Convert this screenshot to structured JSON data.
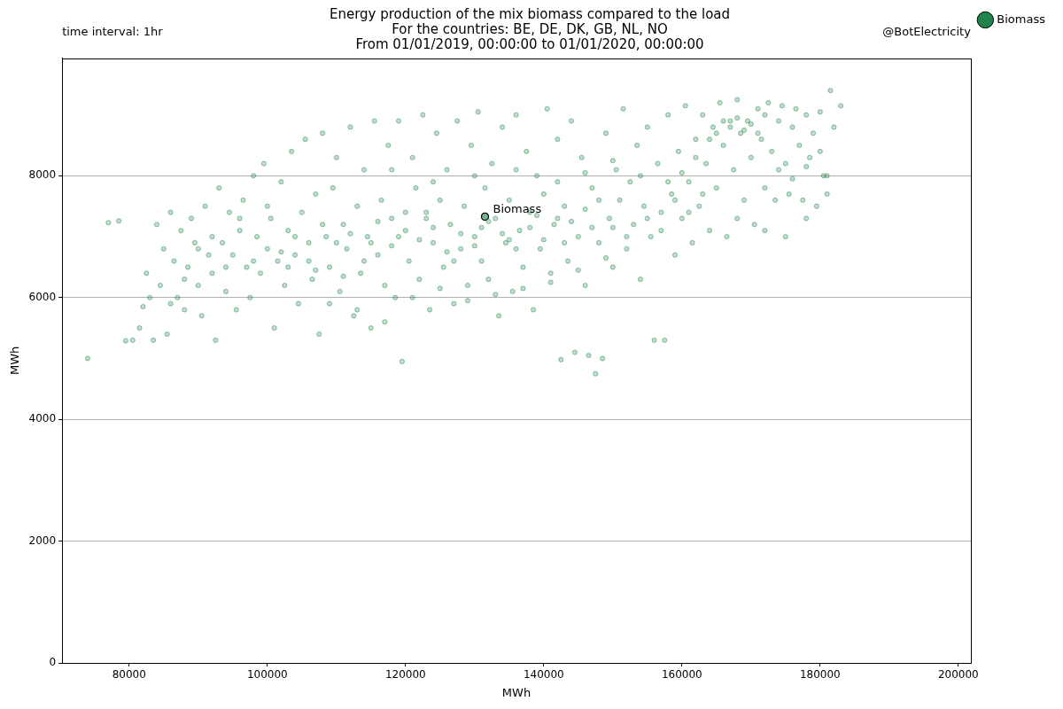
{
  "chart_data": {
    "type": "scatter",
    "title": [
      "Energy production of the mix biomass compared to the load",
      "For the countries: BE, DE, DK, GB, NL, NO",
      "From 01/01/2019, 00:00:00 to 01/01/2020, 00:00:00"
    ],
    "corner_texts": {
      "left": "time interval: 1hr",
      "right": "@BotElectricity"
    },
    "x_label": "MWh",
    "y_label": "MWh",
    "xlim": [
      70300,
      201800
    ],
    "xticks": [
      80000,
      100000,
      120000,
      140000,
      160000,
      180000,
      200000
    ],
    "ylim": [
      0,
      9930
    ],
    "yticks": [
      0,
      2000,
      4000,
      6000,
      8000
    ],
    "grid": "y",
    "legend": "right",
    "annotations": [
      {
        "text": "Biomass",
        "x": 131500,
        "y": 7330
      }
    ],
    "series": [
      {
        "name": "Biomass",
        "color": "#1e8449",
        "marker": "circle",
        "values": [
          [
            74000,
            5000
          ],
          [
            77000,
            7230
          ],
          [
            78500,
            7260
          ],
          [
            79500,
            5290
          ],
          [
            80500,
            5300
          ],
          [
            81500,
            5500
          ],
          [
            82000,
            5850
          ],
          [
            82500,
            6400
          ],
          [
            83000,
            6000
          ],
          [
            83500,
            5300
          ],
          [
            84000,
            7200
          ],
          [
            84500,
            6200
          ],
          [
            85000,
            6800
          ],
          [
            85500,
            5400
          ],
          [
            86000,
            7400
          ],
          [
            86500,
            6600
          ],
          [
            87000,
            6000
          ],
          [
            87500,
            7100
          ],
          [
            88000,
            5800
          ],
          [
            88500,
            6500
          ],
          [
            89000,
            7300
          ],
          [
            89500,
            6900
          ],
          [
            90000,
            6200
          ],
          [
            90500,
            5700
          ],
          [
            91000,
            7500
          ],
          [
            91500,
            6700
          ],
          [
            92000,
            6400
          ],
          [
            92500,
            5300
          ],
          [
            93000,
            7800
          ],
          [
            93500,
            6900
          ],
          [
            94000,
            6100
          ],
          [
            94500,
            7400
          ],
          [
            95000,
            6700
          ],
          [
            95500,
            5800
          ],
          [
            96000,
            7100
          ],
          [
            96500,
            7600
          ],
          [
            97000,
            6500
          ],
          [
            97500,
            6000
          ],
          [
            98000,
            8000
          ],
          [
            98500,
            7000
          ],
          [
            99000,
            6400
          ],
          [
            99500,
            8200
          ],
          [
            100000,
            6800
          ],
          [
            100500,
            7300
          ],
          [
            101000,
            5500
          ],
          [
            101500,
            6600
          ],
          [
            102000,
            7900
          ],
          [
            102500,
            6200
          ],
          [
            103000,
            7100
          ],
          [
            103500,
            8400
          ],
          [
            104000,
            6700
          ],
          [
            104500,
            5900
          ],
          [
            105000,
            7400
          ],
          [
            105500,
            8600
          ],
          [
            106000,
            6900
          ],
          [
            106500,
            6300
          ],
          [
            107000,
            7700
          ],
          [
            107500,
            5400
          ],
          [
            108000,
            8700
          ],
          [
            108500,
            7000
          ],
          [
            109000,
            6500
          ],
          [
            109500,
            7800
          ],
          [
            110000,
            8300
          ],
          [
            110500,
            6100
          ],
          [
            111000,
            7200
          ],
          [
            111500,
            6800
          ],
          [
            112000,
            8800
          ],
          [
            112500,
            5700
          ],
          [
            113000,
            7500
          ],
          [
            113500,
            6400
          ],
          [
            114000,
            8100
          ],
          [
            114500,
            7000
          ],
          [
            115000,
            5500
          ],
          [
            115500,
            8900
          ],
          [
            116000,
            6700
          ],
          [
            116500,
            7600
          ],
          [
            117000,
            6200
          ],
          [
            117500,
            8500
          ],
          [
            118000,
            7300
          ],
          [
            118500,
            6000
          ],
          [
            119000,
            8900
          ],
          [
            119500,
            4950
          ],
          [
            120000,
            7100
          ],
          [
            120500,
            6600
          ],
          [
            121000,
            8300
          ],
          [
            121500,
            7800
          ],
          [
            122000,
            6300
          ],
          [
            122500,
            9000
          ],
          [
            123000,
            7400
          ],
          [
            123500,
            5800
          ],
          [
            124000,
            6900
          ],
          [
            124500,
            8700
          ],
          [
            125000,
            7600
          ],
          [
            125500,
            6500
          ],
          [
            126000,
            8100
          ],
          [
            126500,
            7200
          ],
          [
            127000,
            5900
          ],
          [
            127500,
            8900
          ],
          [
            128000,
            6800
          ],
          [
            128500,
            7500
          ],
          [
            129000,
            6200
          ],
          [
            129500,
            8500
          ],
          [
            130000,
            7000
          ],
          [
            130500,
            9050
          ],
          [
            131000,
            6600
          ],
          [
            131500,
            7800
          ],
          [
            132000,
            6300
          ],
          [
            132500,
            8200
          ],
          [
            133000,
            7300
          ],
          [
            133500,
            5700
          ],
          [
            134000,
            8800
          ],
          [
            134500,
            6900
          ],
          [
            135000,
            7600
          ],
          [
            135500,
            6100
          ],
          [
            136000,
            9000
          ],
          [
            136500,
            7100
          ],
          [
            137000,
            6500
          ],
          [
            137500,
            8400
          ],
          [
            138000,
            7400
          ],
          [
            138500,
            5800
          ],
          [
            139000,
            8000
          ],
          [
            139500,
            6800
          ],
          [
            140000,
            7700
          ],
          [
            140500,
            9100
          ],
          [
            141000,
            6400
          ],
          [
            141500,
            7200
          ],
          [
            142000,
            8600
          ],
          [
            142500,
            4980
          ],
          [
            143000,
            7500
          ],
          [
            143500,
            6600
          ],
          [
            144000,
            8900
          ],
          [
            144500,
            5100
          ],
          [
            145000,
            7000
          ],
          [
            145500,
            8300
          ],
          [
            146000,
            6200
          ],
          [
            146500,
            5050
          ],
          [
            147000,
            7800
          ],
          [
            147500,
            4750
          ],
          [
            148000,
            6900
          ],
          [
            148500,
            5000
          ],
          [
            149000,
            8700
          ],
          [
            149500,
            7300
          ],
          [
            150000,
            6500
          ],
          [
            150500,
            8100
          ],
          [
            151000,
            7600
          ],
          [
            151500,
            9100
          ],
          [
            152000,
            6800
          ],
          [
            152500,
            7900
          ],
          [
            153000,
            7200
          ],
          [
            153500,
            8500
          ],
          [
            154000,
            6300
          ],
          [
            154500,
            7500
          ],
          [
            155000,
            8800
          ],
          [
            155500,
            7000
          ],
          [
            156000,
            5300
          ],
          [
            156500,
            8200
          ],
          [
            157000,
            7400
          ],
          [
            157500,
            5300
          ],
          [
            158000,
            9000
          ],
          [
            158500,
            7700
          ],
          [
            159000,
            6700
          ],
          [
            159500,
            8400
          ],
          [
            160000,
            7300
          ],
          [
            160500,
            9150
          ],
          [
            161000,
            7900
          ],
          [
            161500,
            6900
          ],
          [
            162000,
            8600
          ],
          [
            162500,
            7500
          ],
          [
            163000,
            9000
          ],
          [
            163500,
            8200
          ],
          [
            164000,
            7100
          ],
          [
            164500,
            8800
          ],
          [
            165000,
            7800
          ],
          [
            165500,
            9200
          ],
          [
            166000,
            8500
          ],
          [
            166500,
            7000
          ],
          [
            167000,
            8900
          ],
          [
            167500,
            8100
          ],
          [
            168000,
            9250
          ],
          [
            168500,
            8700
          ],
          [
            169000,
            7600
          ],
          [
            169500,
            8900
          ],
          [
            170000,
            8300
          ],
          [
            170500,
            7200
          ],
          [
            171000,
            9100
          ],
          [
            171500,
            8600
          ],
          [
            172000,
            7800
          ],
          [
            172500,
            9200
          ],
          [
            173000,
            8400
          ],
          [
            173500,
            7600
          ],
          [
            174000,
            8900
          ],
          [
            174500,
            9150
          ],
          [
            175000,
            8200
          ],
          [
            175500,
            7700
          ],
          [
            176000,
            8800
          ],
          [
            176500,
            9100
          ],
          [
            177000,
            8500
          ],
          [
            177500,
            7600
          ],
          [
            178000,
            9000
          ],
          [
            178500,
            8300
          ],
          [
            179000,
            8700
          ],
          [
            179500,
            7500
          ],
          [
            180000,
            9050
          ],
          [
            180500,
            8000
          ],
          [
            181000,
            7700
          ],
          [
            181500,
            9400
          ],
          [
            182000,
            8800
          ],
          [
            183000,
            9150
          ],
          [
            98000,
            6600
          ],
          [
            102000,
            6750
          ],
          [
            104000,
            7000
          ],
          [
            106000,
            6600
          ],
          [
            108000,
            7200
          ],
          [
            110000,
            6900
          ],
          [
            112000,
            7050
          ],
          [
            114000,
            6600
          ],
          [
            116000,
            7250
          ],
          [
            118000,
            6850
          ],
          [
            120000,
            7400
          ],
          [
            122000,
            6950
          ],
          [
            124000,
            7150
          ],
          [
            126000,
            6750
          ],
          [
            128000,
            7050
          ],
          [
            130000,
            6850
          ],
          [
            132000,
            7250
          ],
          [
            134000,
            7050
          ],
          [
            136000,
            6800
          ],
          [
            138000,
            7150
          ],
          [
            140000,
            6950
          ],
          [
            142000,
            7300
          ],
          [
            144000,
            7250
          ],
          [
            146000,
            7450
          ],
          [
            148000,
            7600
          ],
          [
            150000,
            7150
          ],
          [
            103000,
            6500
          ],
          [
            107000,
            6450
          ],
          [
            111000,
            6350
          ],
          [
            115000,
            6900
          ],
          [
            119000,
            7000
          ],
          [
            123000,
            7300
          ],
          [
            127000,
            6600
          ],
          [
            131000,
            7150
          ],
          [
            135000,
            6950
          ],
          [
            139000,
            7350
          ],
          [
            143000,
            6900
          ],
          [
            147000,
            7150
          ],
          [
            165000,
            8700
          ],
          [
            166000,
            8900
          ],
          [
            167000,
            8800
          ],
          [
            168000,
            8950
          ],
          [
            169000,
            8750
          ],
          [
            170000,
            8850
          ],
          [
            164000,
            8600
          ],
          [
            171000,
            8700
          ],
          [
            172000,
            9000
          ],
          [
            162000,
            8300
          ],
          [
            158000,
            7900
          ],
          [
            160000,
            8050
          ],
          [
            174000,
            8100
          ],
          [
            176000,
            7950
          ],
          [
            178000,
            8150
          ],
          [
            180000,
            8400
          ],
          [
            96000,
            7300
          ],
          [
            100000,
            7500
          ],
          [
            94000,
            6500
          ],
          [
            92000,
            7000
          ],
          [
            90000,
            6800
          ],
          [
            88000,
            6300
          ],
          [
            86000,
            5900
          ],
          [
            109000,
            5900
          ],
          [
            113000,
            5800
          ],
          [
            117000,
            5600
          ],
          [
            121000,
            6000
          ],
          [
            125000,
            6150
          ],
          [
            129000,
            5950
          ],
          [
            133000,
            6050
          ],
          [
            137000,
            6150
          ],
          [
            141000,
            6250
          ],
          [
            145000,
            6450
          ],
          [
            149000,
            6650
          ],
          [
            152000,
            7000
          ],
          [
            155000,
            7300
          ],
          [
            157000,
            7100
          ],
          [
            159000,
            7600
          ],
          [
            161000,
            7400
          ],
          [
            163000,
            7700
          ],
          [
            118000,
            8100
          ],
          [
            124000,
            7900
          ],
          [
            130000,
            8000
          ],
          [
            136000,
            8100
          ],
          [
            142000,
            7900
          ],
          [
            146000,
            8050
          ],
          [
            150000,
            8250
          ],
          [
            154000,
            8000
          ],
          [
            175000,
            7000
          ],
          [
            172000,
            7100
          ],
          [
            168000,
            7300
          ],
          [
            178000,
            7300
          ],
          [
            181000,
            8000
          ]
        ]
      }
    ]
  }
}
